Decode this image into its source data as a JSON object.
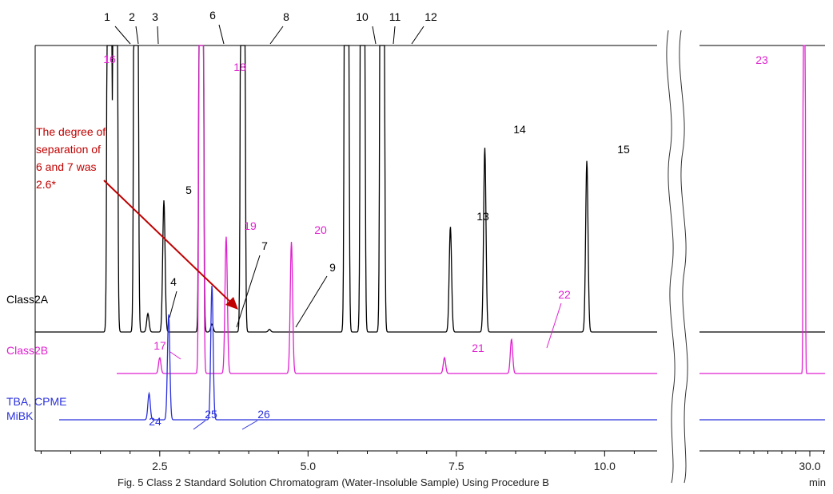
{
  "chart_data": {
    "type": "line",
    "caption": "Fig. 5 Class 2 Standard Solution Chromatogram (Water-Insoluble Sample) Using Procedure B",
    "x_unit": "min",
    "x_ticks_main": [
      "2.5",
      "5.0",
      "7.5",
      "10.0"
    ],
    "x_ticks_inset": [
      "30.0"
    ],
    "annotation": [
      "The degree of",
      "separation of",
      "6 and 7 was",
      "2.6*"
    ],
    "colors": {
      "class2a": "#000000",
      "class2b": "#e020d0",
      "tba": "#2a30dc",
      "annotation": "#c00000"
    },
    "series": [
      {
        "name": "Class2A",
        "label_lines": [
          "Class2A"
        ],
        "peaks": [
          {
            "label": "1",
            "x": 1.65,
            "height": "off-scale"
          },
          {
            "label": "2",
            "x": 1.75,
            "height": "off-scale"
          },
          {
            "label": "3",
            "x": 2.1,
            "height": "off-scale"
          },
          {
            "label": "4",
            "x": 2.3,
            "height": 0.07
          },
          {
            "label": "5",
            "x": 2.57,
            "height": 0.5
          },
          {
            "label": "6",
            "x": 3.2,
            "height": "off-scale"
          },
          {
            "label": "7",
            "x": 3.38,
            "height": 0.03
          },
          {
            "label": "8",
            "x": 3.9,
            "height": "off-scale"
          },
          {
            "label": "9",
            "x": 4.35,
            "height": 0.01
          },
          {
            "label": "10",
            "x": 5.65,
            "height": "off-scale"
          },
          {
            "label": "11",
            "x": 5.92,
            "height": "off-scale"
          },
          {
            "label": "12",
            "x": 6.25,
            "height": "off-scale"
          },
          {
            "label": "13",
            "x": 7.4,
            "height": 0.4
          },
          {
            "label": "14",
            "x": 7.98,
            "height": 0.7
          },
          {
            "label": "15",
            "x": 9.7,
            "height": 0.65
          }
        ]
      },
      {
        "name": "Class2B",
        "label_lines": [
          "Class2B"
        ],
        "peaks": [
          {
            "label": "16",
            "x": 1.6,
            "height": "off-scale"
          },
          {
            "label": "17",
            "x": 2.5,
            "height": 0.06
          },
          {
            "label": "18",
            "x": 3.2,
            "height": "off-scale"
          },
          {
            "label": "19",
            "x": 3.62,
            "height": 0.52
          },
          {
            "label": "20",
            "x": 4.72,
            "height": 0.5
          },
          {
            "label": "21",
            "x": 7.3,
            "height": 0.06
          },
          {
            "label": "22",
            "x": 8.43,
            "height": 0.13
          },
          {
            "label": "23",
            "x": 29.8,
            "height": "off-scale"
          }
        ]
      },
      {
        "name": "TBA, CPME, MiBK",
        "label_lines": [
          "TBA, CPME",
          "MiBK"
        ],
        "peaks": [
          {
            "label": "24",
            "x": 2.32,
            "height": 0.1
          },
          {
            "label": "25",
            "x": 2.65,
            "height": 0.4
          },
          {
            "label": "26",
            "x": 3.38,
            "height": 0.51
          }
        ]
      }
    ]
  }
}
